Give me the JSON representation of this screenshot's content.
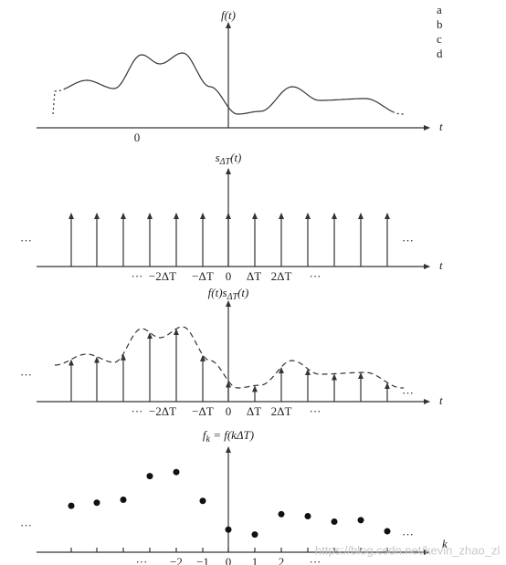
{
  "side_labels": [
    "a",
    "b",
    "c",
    "d"
  ],
  "panels": [
    {
      "function_label": {
        "base": "f",
        "arg": "(t)"
      },
      "axis_label": "t",
      "ticks": [
        "0"
      ]
    },
    {
      "function_label": {
        "base": "s",
        "sub": "ΔT",
        "arg": "(t)"
      },
      "axis_label": "t",
      "ellipsis_left": "···",
      "ellipsis_right": "···",
      "ticks": [
        "···",
        "−2ΔT",
        "−ΔT",
        "0",
        "ΔT",
        "2ΔT",
        "···"
      ]
    },
    {
      "function_label": {
        "base": "f(t)s",
        "sub": "ΔT",
        "arg": "(t)"
      },
      "axis_label": "t",
      "ellipsis_left": "···",
      "ellipsis_right": "···",
      "ticks": [
        "···",
        "−2ΔT",
        "−ΔT",
        "0",
        "ΔT",
        "2ΔT",
        "···"
      ]
    },
    {
      "function_label": {
        "base": "f",
        "sub": "k",
        "arg": " = f(kΔT)"
      },
      "axis_label": "k",
      "ellipsis_left": "···",
      "ellipsis_right": "···",
      "ticks": [
        "···",
        "−2",
        "−1",
        "0",
        "1",
        "2",
        "···"
      ]
    }
  ],
  "watermark": "https://blog.csdn.net/kevin_zhao_zl"
}
